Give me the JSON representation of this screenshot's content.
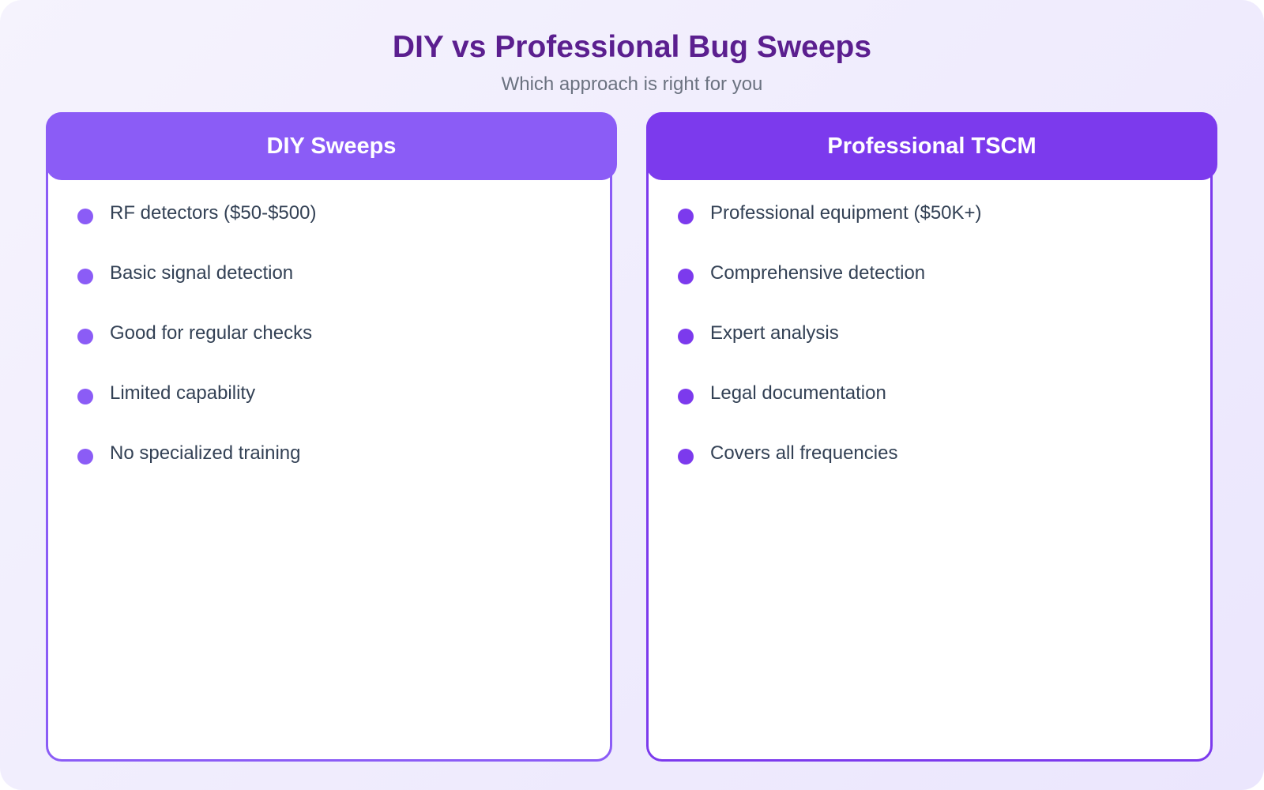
{
  "header": {
    "title": "DIY vs Professional Bug Sweeps",
    "subtitle": "Which approach is right for you"
  },
  "colors": {
    "diy_accent": "#8b5cf6",
    "pro_accent": "#7c3aed",
    "title": "#5b1f8f"
  },
  "cards": [
    {
      "title": "DIY Sweeps",
      "items": [
        "RF detectors ($50-$500)",
        "Basic signal detection",
        "Good for regular checks",
        "Limited capability",
        "No specialized training"
      ]
    },
    {
      "title": "Professional TSCM",
      "items": [
        "Professional equipment ($50K+)",
        "Comprehensive detection",
        "Expert analysis",
        "Legal documentation",
        "Covers all frequencies"
      ]
    }
  ]
}
